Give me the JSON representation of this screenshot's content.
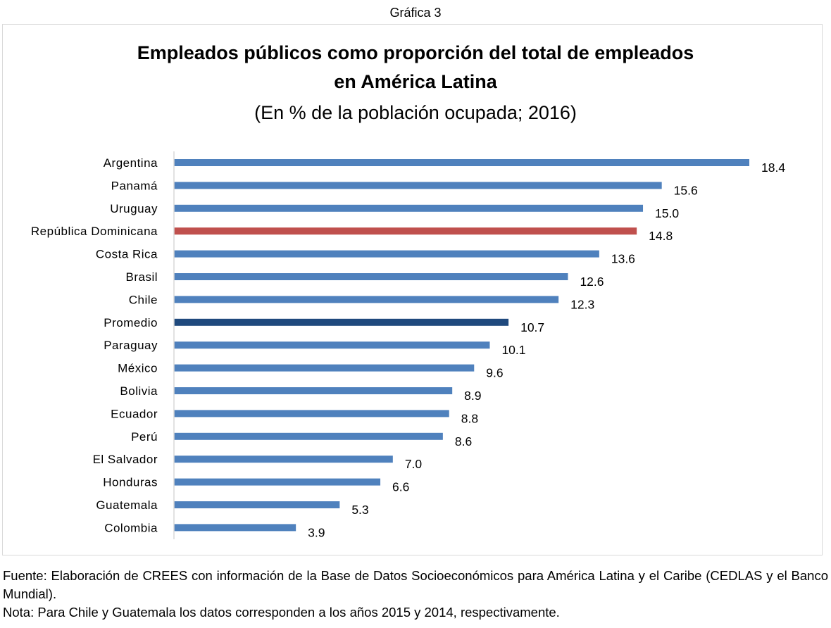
{
  "caption": "Gráfica 3",
  "chart_data": {
    "type": "bar",
    "orientation": "horizontal",
    "title": "Empleados públicos como proporción del total de empleados en América Latina",
    "title_lines": [
      "Empleados públicos como proporción del total de empleados",
      "en América Latina"
    ],
    "subtitle": "(En % de la población ocupada; 2016)",
    "categories": [
      "Argentina",
      "Panamá",
      "Uruguay",
      "República Dominicana",
      "Costa Rica",
      "Brasil",
      "Chile",
      "Promedio",
      "Paraguay",
      "México",
      "Bolivia",
      "Ecuador",
      "Perú",
      "El Salvador",
      "Honduras",
      "Guatemala",
      "Colombia"
    ],
    "values": [
      18.4,
      15.6,
      15.0,
      14.8,
      13.6,
      12.6,
      12.3,
      10.7,
      10.1,
      9.6,
      8.9,
      8.8,
      8.6,
      7.0,
      6.6,
      5.3,
      3.9
    ],
    "value_labels": [
      "18.4",
      "15.6",
      "15.0",
      "14.8",
      "13.6",
      "12.6",
      "12.3",
      "10.7",
      "10.1",
      "9.6",
      "8.9",
      "8.8",
      "8.6",
      "7.0",
      "6.6",
      "5.3",
      "3.9"
    ],
    "xlim": [
      0,
      18.4
    ],
    "grid": false,
    "colors": {
      "default": "#4F81BD",
      "República Dominicana": "#C0504D",
      "Promedio": "#1F497D"
    }
  },
  "footer": {
    "source": "Fuente: Elaboración de CREES con información de la Base de Datos Socioeconómicos para América Latina y el Caribe (CEDLAS y el Banco Mundial).",
    "note": "Nota: Para Chile y Guatemala los datos corresponden a los años 2015 y 2014, respectivamente."
  }
}
